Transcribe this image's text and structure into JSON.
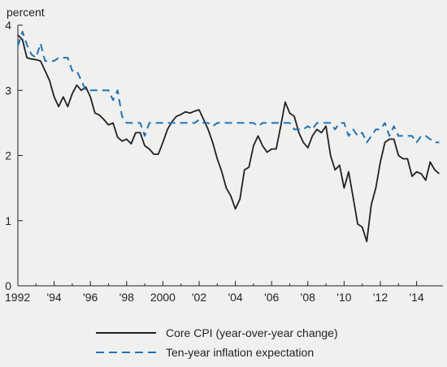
{
  "chart_data": {
    "type": "line",
    "ylabel": "percent",
    "xlim": [
      1992,
      2015
    ],
    "ylim": [
      0,
      4
    ],
    "x_ticks": [
      {
        "value": 1992,
        "label": "1992"
      },
      {
        "value": 1994,
        "label": "'94"
      },
      {
        "value": 1996,
        "label": "'96"
      },
      {
        "value": 1998,
        "label": "'98"
      },
      {
        "value": 2000,
        "label": "2000"
      },
      {
        "value": 2002,
        "label": "'02"
      },
      {
        "value": 2004,
        "label": "'04"
      },
      {
        "value": 2006,
        "label": "'06"
      },
      {
        "value": 2008,
        "label": "'08"
      },
      {
        "value": 2010,
        "label": "'10"
      },
      {
        "value": 2012,
        "label": "'12"
      },
      {
        "value": 2014,
        "label": "'14"
      }
    ],
    "y_ticks": [
      {
        "value": 0,
        "label": "0"
      },
      {
        "value": 1,
        "label": "1"
      },
      {
        "value": 2,
        "label": "2"
      },
      {
        "value": 3,
        "label": "3"
      },
      {
        "value": 4,
        "label": "4"
      }
    ],
    "grid": false,
    "legend_position": "bottom",
    "series": [
      {
        "name": "Core CPI (year-over-year change)",
        "style": "solid",
        "color": "#231f20",
        "points": [
          [
            1992.0,
            3.85
          ],
          [
            1992.25,
            3.78
          ],
          [
            1992.5,
            3.5
          ],
          [
            1992.75,
            3.48
          ],
          [
            1993.0,
            3.47
          ],
          [
            1993.25,
            3.45
          ],
          [
            1993.5,
            3.3
          ],
          [
            1993.75,
            3.15
          ],
          [
            1994.0,
            2.9
          ],
          [
            1994.25,
            2.75
          ],
          [
            1994.5,
            2.9
          ],
          [
            1994.75,
            2.75
          ],
          [
            1995.0,
            2.95
          ],
          [
            1995.25,
            3.08
          ],
          [
            1995.5,
            3.0
          ],
          [
            1995.75,
            3.05
          ],
          [
            1996.0,
            2.9
          ],
          [
            1996.25,
            2.65
          ],
          [
            1996.5,
            2.62
          ],
          [
            1996.75,
            2.55
          ],
          [
            1997.0,
            2.47
          ],
          [
            1997.25,
            2.5
          ],
          [
            1997.5,
            2.28
          ],
          [
            1997.75,
            2.22
          ],
          [
            1998.0,
            2.25
          ],
          [
            1998.25,
            2.18
          ],
          [
            1998.5,
            2.35
          ],
          [
            1998.75,
            2.35
          ],
          [
            1999.0,
            2.15
          ],
          [
            1999.25,
            2.1
          ],
          [
            1999.5,
            2.02
          ],
          [
            1999.75,
            2.02
          ],
          [
            2000.0,
            2.2
          ],
          [
            2000.25,
            2.4
          ],
          [
            2000.5,
            2.52
          ],
          [
            2000.75,
            2.6
          ],
          [
            2001.0,
            2.63
          ],
          [
            2001.25,
            2.67
          ],
          [
            2001.5,
            2.65
          ],
          [
            2001.75,
            2.68
          ],
          [
            2002.0,
            2.7
          ],
          [
            2002.25,
            2.55
          ],
          [
            2002.5,
            2.4
          ],
          [
            2002.75,
            2.2
          ],
          [
            2003.0,
            1.95
          ],
          [
            2003.25,
            1.75
          ],
          [
            2003.5,
            1.5
          ],
          [
            2003.75,
            1.38
          ],
          [
            2004.0,
            1.18
          ],
          [
            2004.25,
            1.33
          ],
          [
            2004.5,
            1.78
          ],
          [
            2004.75,
            1.82
          ],
          [
            2005.0,
            2.15
          ],
          [
            2005.25,
            2.3
          ],
          [
            2005.5,
            2.15
          ],
          [
            2005.75,
            2.05
          ],
          [
            2006.0,
            2.1
          ],
          [
            2006.25,
            2.1
          ],
          [
            2006.5,
            2.45
          ],
          [
            2006.75,
            2.82
          ],
          [
            2007.0,
            2.65
          ],
          [
            2007.25,
            2.6
          ],
          [
            2007.5,
            2.35
          ],
          [
            2007.75,
            2.2
          ],
          [
            2008.0,
            2.12
          ],
          [
            2008.25,
            2.3
          ],
          [
            2008.5,
            2.4
          ],
          [
            2008.75,
            2.35
          ],
          [
            2009.0,
            2.45
          ],
          [
            2009.25,
            2.0
          ],
          [
            2009.5,
            1.78
          ],
          [
            2009.75,
            1.85
          ],
          [
            2010.0,
            1.5
          ],
          [
            2010.25,
            1.75
          ],
          [
            2010.5,
            1.35
          ],
          [
            2010.75,
            0.95
          ],
          [
            2011.0,
            0.9
          ],
          [
            2011.25,
            0.68
          ],
          [
            2011.5,
            1.25
          ],
          [
            2011.75,
            1.5
          ],
          [
            2012.0,
            1.9
          ],
          [
            2012.25,
            2.2
          ],
          [
            2012.5,
            2.25
          ],
          [
            2012.75,
            2.25
          ],
          [
            2013.0,
            2.0
          ],
          [
            2013.25,
            1.95
          ],
          [
            2013.5,
            1.95
          ],
          [
            2013.75,
            1.68
          ],
          [
            2014.0,
            1.75
          ],
          [
            2014.25,
            1.72
          ],
          [
            2014.5,
            1.62
          ],
          [
            2014.75,
            1.9
          ],
          [
            2015.0,
            1.78
          ],
          [
            2015.25,
            1.72
          ]
        ]
      },
      {
        "name": "Ten-year inflation expectation",
        "style": "dashed",
        "color": "#1a75bb",
        "points": [
          [
            1992.0,
            3.68
          ],
          [
            1992.25,
            3.9
          ],
          [
            1992.5,
            3.7
          ],
          [
            1992.75,
            3.55
          ],
          [
            1993.0,
            3.5
          ],
          [
            1993.25,
            3.72
          ],
          [
            1993.5,
            3.45
          ],
          [
            1993.75,
            3.45
          ],
          [
            1994.0,
            3.45
          ],
          [
            1994.25,
            3.5
          ],
          [
            1994.5,
            3.5
          ],
          [
            1994.75,
            3.5
          ],
          [
            1995.0,
            3.3
          ],
          [
            1995.25,
            3.3
          ],
          [
            1995.5,
            3.15
          ],
          [
            1995.75,
            3.0
          ],
          [
            1996.0,
            3.0
          ],
          [
            1996.25,
            3.0
          ],
          [
            1996.5,
            3.0
          ],
          [
            1996.75,
            3.0
          ],
          [
            1997.0,
            3.0
          ],
          [
            1997.25,
            2.85
          ],
          [
            1997.5,
            3.0
          ],
          [
            1997.75,
            2.6
          ],
          [
            1998.0,
            2.5
          ],
          [
            1998.25,
            2.5
          ],
          [
            1998.5,
            2.5
          ],
          [
            1998.75,
            2.5
          ],
          [
            1999.0,
            2.3
          ],
          [
            1999.25,
            2.5
          ],
          [
            1999.5,
            2.5
          ],
          [
            1999.75,
            2.5
          ],
          [
            2000.0,
            2.5
          ],
          [
            2000.25,
            2.5
          ],
          [
            2000.5,
            2.5
          ],
          [
            2000.75,
            2.5
          ],
          [
            2001.0,
            2.5
          ],
          [
            2001.25,
            2.5
          ],
          [
            2001.5,
            2.5
          ],
          [
            2001.75,
            2.5
          ],
          [
            2002.0,
            2.55
          ],
          [
            2002.25,
            2.5
          ],
          [
            2002.5,
            2.5
          ],
          [
            2002.75,
            2.45
          ],
          [
            2003.0,
            2.5
          ],
          [
            2003.25,
            2.5
          ],
          [
            2003.5,
            2.5
          ],
          [
            2003.75,
            2.5
          ],
          [
            2004.0,
            2.5
          ],
          [
            2004.25,
            2.5
          ],
          [
            2004.5,
            2.5
          ],
          [
            2004.75,
            2.5
          ],
          [
            2005.0,
            2.5
          ],
          [
            2005.25,
            2.45
          ],
          [
            2005.5,
            2.5
          ],
          [
            2005.75,
            2.5
          ],
          [
            2006.0,
            2.5
          ],
          [
            2006.25,
            2.5
          ],
          [
            2006.5,
            2.5
          ],
          [
            2006.75,
            2.5
          ],
          [
            2007.0,
            2.5
          ],
          [
            2007.25,
            2.4
          ],
          [
            2007.5,
            2.4
          ],
          [
            2007.75,
            2.4
          ],
          [
            2008.0,
            2.45
          ],
          [
            2008.25,
            2.4
          ],
          [
            2008.5,
            2.5
          ],
          [
            2008.75,
            2.5
          ],
          [
            2009.0,
            2.5
          ],
          [
            2009.25,
            2.5
          ],
          [
            2009.5,
            2.4
          ],
          [
            2009.75,
            2.5
          ],
          [
            2010.0,
            2.5
          ],
          [
            2010.25,
            2.3
          ],
          [
            2010.5,
            2.4
          ],
          [
            2010.75,
            2.3
          ],
          [
            2011.0,
            2.35
          ],
          [
            2011.25,
            2.2
          ],
          [
            2011.5,
            2.3
          ],
          [
            2011.75,
            2.4
          ],
          [
            2012.0,
            2.4
          ],
          [
            2012.25,
            2.5
          ],
          [
            2012.5,
            2.3
          ],
          [
            2012.75,
            2.45
          ],
          [
            2013.0,
            2.3
          ],
          [
            2013.25,
            2.3
          ],
          [
            2013.5,
            2.3
          ],
          [
            2013.75,
            2.3
          ],
          [
            2014.0,
            2.2
          ],
          [
            2014.25,
            2.3
          ],
          [
            2014.5,
            2.3
          ],
          [
            2014.75,
            2.25
          ],
          [
            2015.0,
            2.2
          ],
          [
            2015.25,
            2.2
          ]
        ]
      }
    ]
  },
  "legend": {
    "items": [
      {
        "label": "Core CPI (year-over-year change)"
      },
      {
        "label": "Ten-year inflation expectation"
      }
    ]
  }
}
